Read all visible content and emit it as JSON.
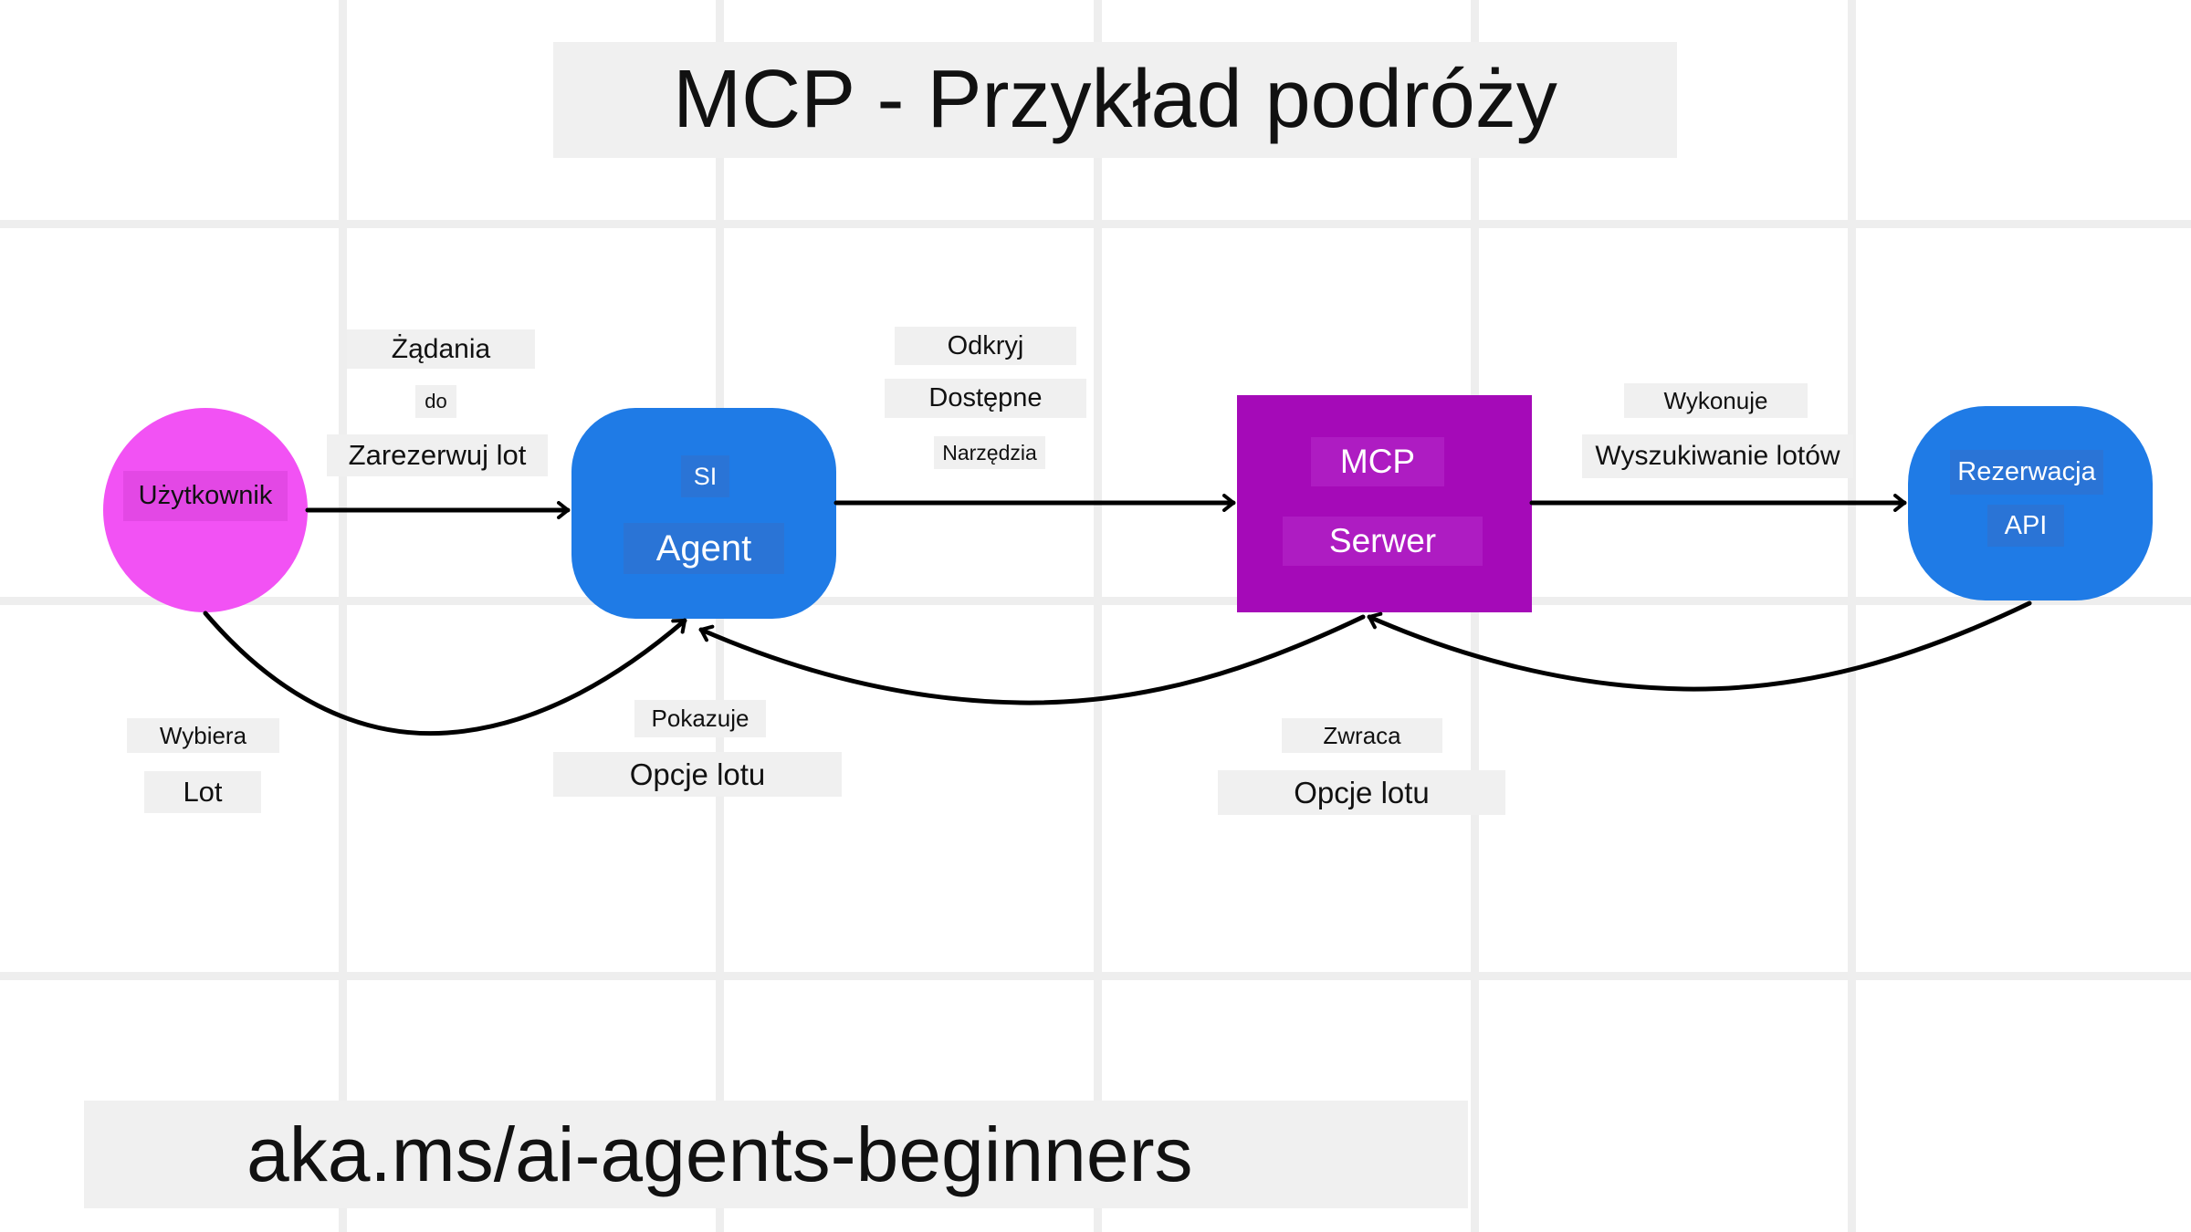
{
  "title": "MCP - Przykład podróży",
  "footer_link": "aka.ms/ai-agents-beginners",
  "colors": {
    "user_node": "#f252f4",
    "agent_node": "#1f7be6",
    "mcp_node": "#a50ab8",
    "api_node": "#1f7be6",
    "label_bg": "#f0f0f0",
    "grid": "#eeeeee"
  },
  "nodes": {
    "user": {
      "label": "Użytkownik"
    },
    "agent": {
      "line1": "SI",
      "line2": "Agent"
    },
    "mcp": {
      "line1": "MCP",
      "line2": "Serwer"
    },
    "api": {
      "line1": "Rezerwacja",
      "line2": "API"
    }
  },
  "edges": {
    "user_to_agent": [
      "Żądania",
      "do",
      "Zarezerwuj lot"
    ],
    "agent_to_mcp": [
      "Odkryj",
      "Dostępne",
      "Narzędzia"
    ],
    "mcp_to_api": [
      "Wykonuje",
      "Wyszukiwanie lotów"
    ],
    "user_selects": [
      "Wybiera",
      "Lot"
    ],
    "agent_shows": [
      "Pokazuje",
      "Opcje lotu"
    ],
    "mcp_returns": [
      "Zwraca",
      "Opcje lotu"
    ]
  }
}
